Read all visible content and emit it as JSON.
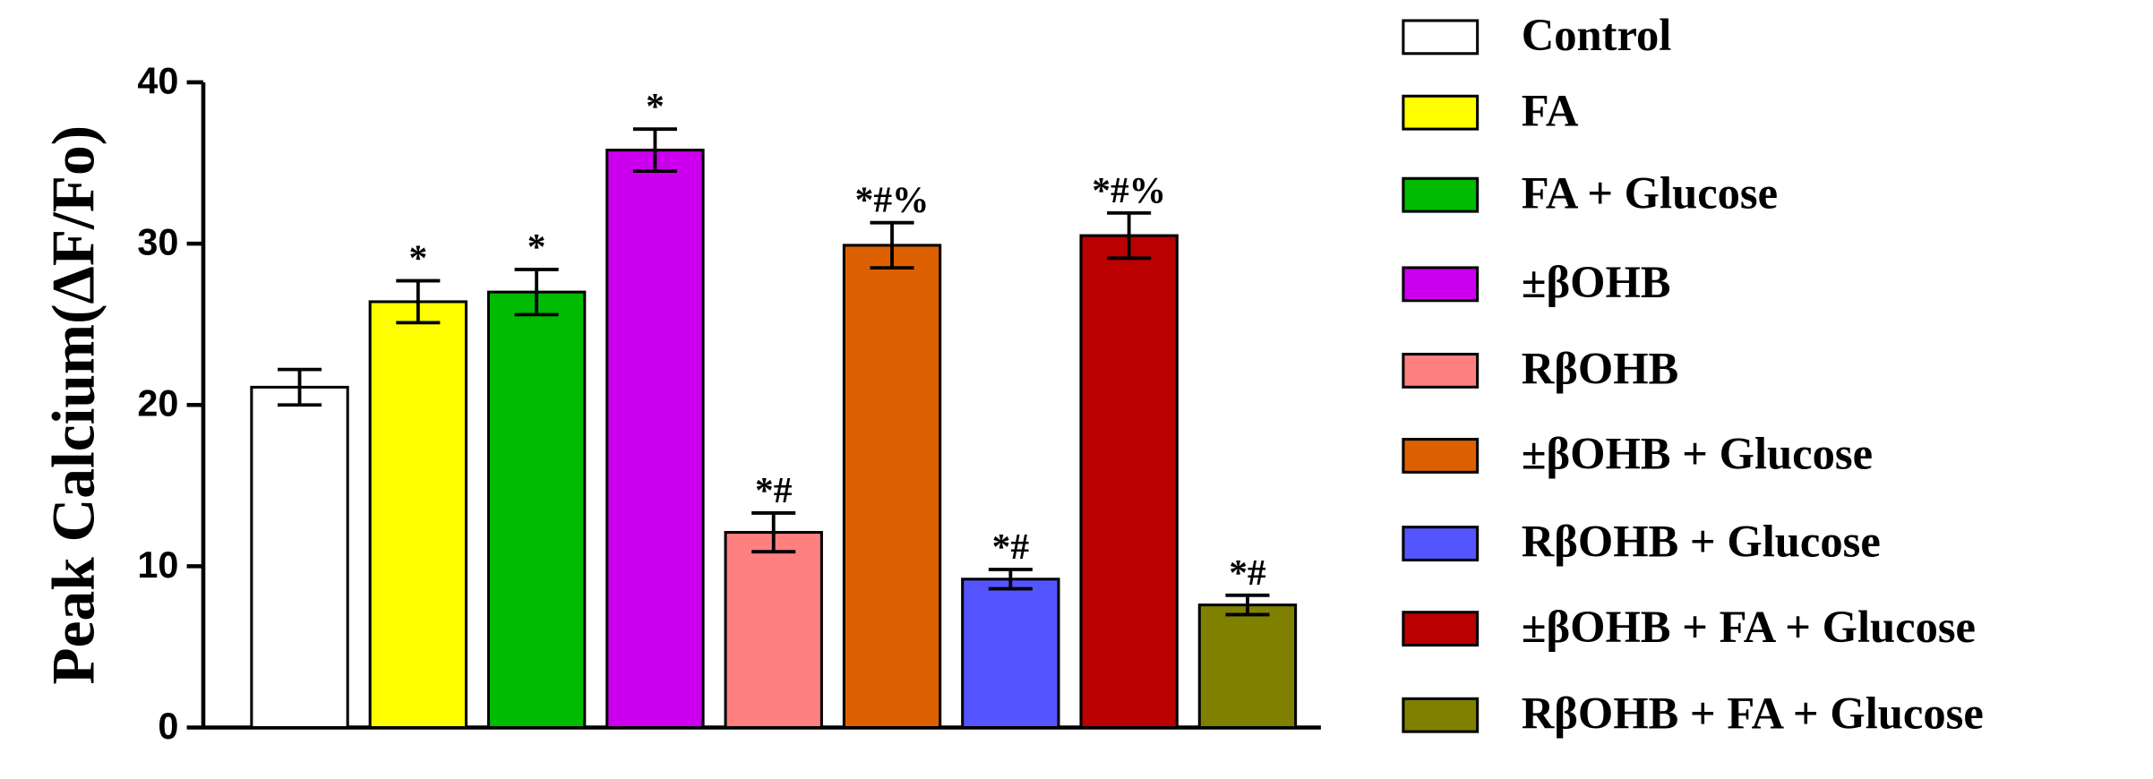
{
  "chart_data": {
    "type": "bar",
    "y_label": "Peak Calcium(ΔF/Fo)",
    "categories": [
      "Control",
      "FA",
      "FA + Glucose",
      "±βOHB",
      "RβOHB",
      "±βOHB + Glucose",
      "RβOHB + Glucose",
      "±βOHB + FA + Glucose",
      "RβOHB + FA + Glucose"
    ],
    "colors": [
      "#ffffff",
      "#ffff00",
      "#00bb00",
      "#cc00ee",
      "#ff8080",
      "#dd6000",
      "#5555ff",
      "#bb0000",
      "#808000"
    ],
    "values": [
      21.1,
      26.4,
      27.0,
      35.8,
      12.1,
      29.9,
      9.2,
      30.5,
      7.6
    ],
    "errors": [
      1.1,
      1.3,
      1.4,
      1.3,
      1.2,
      1.4,
      0.6,
      1.4,
      0.6
    ],
    "annotations": [
      null,
      "*",
      "*",
      "*",
      "*#",
      "*#%",
      "*#",
      "*#%",
      "*#"
    ],
    "ylim": [
      0,
      40
    ],
    "yticks": [
      0,
      10,
      20,
      30,
      40
    ]
  }
}
